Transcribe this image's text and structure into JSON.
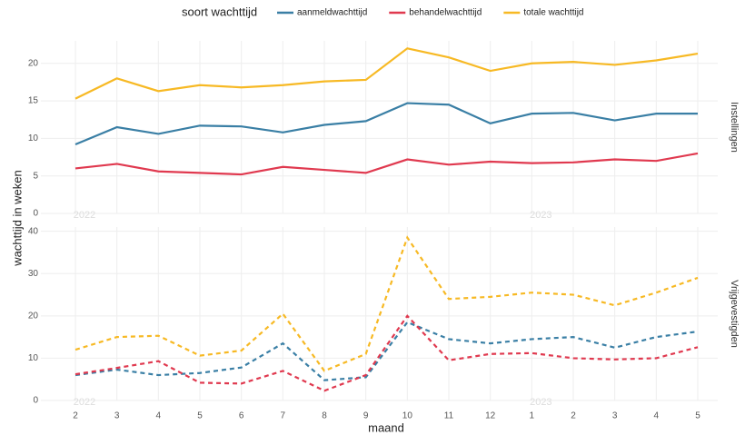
{
  "legend_title": "soort wachttijd",
  "xlabel": "maand",
  "ylabel": "wachttijd in weken",
  "categories": [
    "2",
    "3",
    "4",
    "5",
    "6",
    "7",
    "8",
    "9",
    "10",
    "11",
    "12",
    "1",
    "2",
    "3",
    "4",
    "5"
  ],
  "years": [
    "2022",
    "2023"
  ],
  "chart_data": [
    {
      "type": "line",
      "strip": "Instellingen",
      "dashed": false,
      "ylim": [
        0,
        23
      ],
      "yticks": [
        0,
        5,
        10,
        15,
        20
      ],
      "grid": true,
      "series": [
        {
          "name": "aanmeldwachttijd",
          "color": "#3a7fa5",
          "values": [
            9.2,
            11.5,
            10.6,
            11.7,
            11.6,
            10.8,
            11.8,
            12.3,
            14.7,
            14.5,
            12,
            13.3,
            13.4,
            12.4,
            13.3,
            13.3
          ]
        },
        {
          "name": "behandelwachttijd",
          "color": "#e0394f",
          "values": [
            6,
            6.6,
            5.6,
            5.4,
            5.2,
            6.2,
            5.8,
            5.4,
            7.2,
            6.5,
            6.9,
            6.7,
            6.8,
            7.2,
            7,
            8
          ]
        },
        {
          "name": "totale wachttijd",
          "color": "#f7b924",
          "values": [
            15.3,
            18,
            16.3,
            17.1,
            16.8,
            17.1,
            17.6,
            17.8,
            22,
            20.8,
            19,
            20,
            20.2,
            19.8,
            20.4,
            21.3
          ]
        }
      ]
    },
    {
      "type": "line",
      "strip": "Vrijgevestigden",
      "dashed": true,
      "ylim": [
        0,
        41
      ],
      "yticks": [
        0,
        10,
        20,
        30,
        40
      ],
      "grid": true,
      "series": [
        {
          "color": "#3a7fa5",
          "values": [
            6,
            7.3,
            6,
            6.5,
            7.8,
            13.5,
            4.8,
            5.5,
            18.5,
            14.5,
            13.5,
            14.5,
            15,
            12.5,
            15,
            16.3
          ]
        },
        {
          "color": "#e0394f",
          "values": [
            6.2,
            7.7,
            9.3,
            4.2,
            4,
            7,
            2.3,
            6,
            20,
            9.5,
            11,
            11.2,
            10,
            9.7,
            10,
            12.6
          ]
        },
        {
          "color": "#f7b924",
          "values": [
            12,
            15,
            15.3,
            10.6,
            11.8,
            20.5,
            7,
            11,
            38.5,
            24,
            24.5,
            25.5,
            25,
            22.5,
            25.5,
            29
          ]
        }
      ]
    }
  ]
}
